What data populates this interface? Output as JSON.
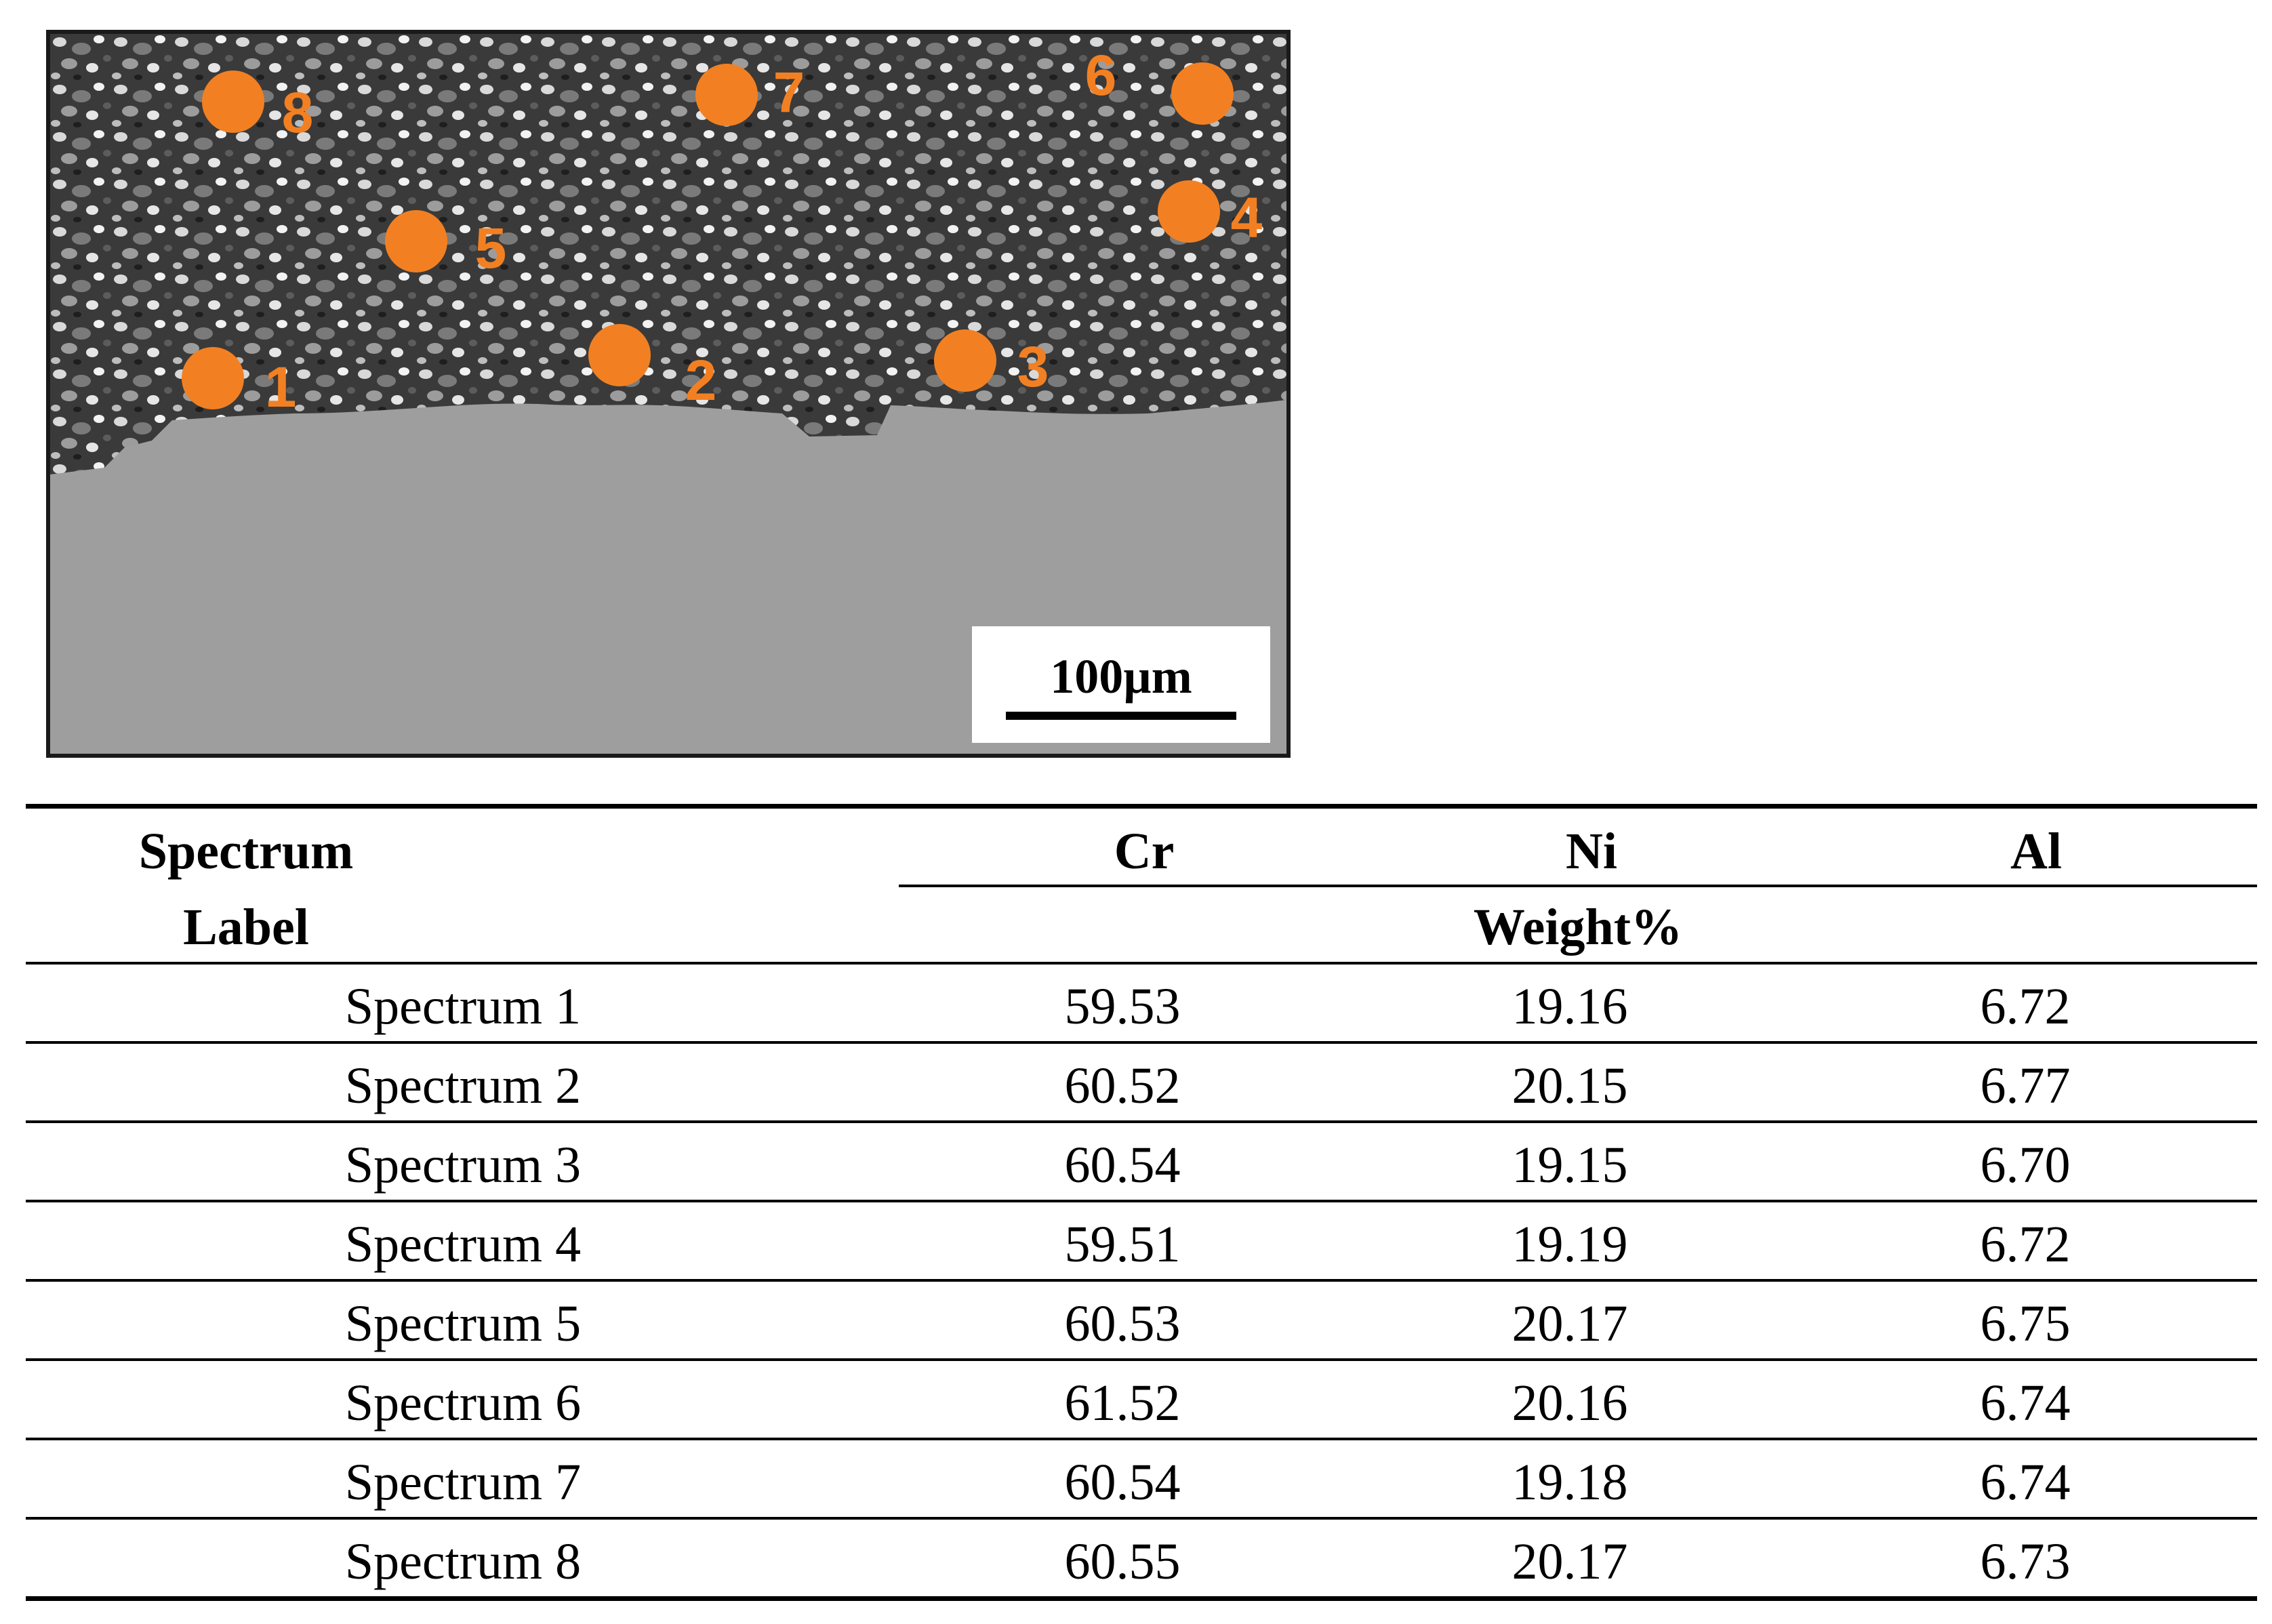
{
  "figure": {
    "scale_bar": {
      "label": "100µm"
    },
    "markers": [
      {
        "label": "1",
        "color": "#F28022"
      },
      {
        "label": "2",
        "color": "#F28022"
      },
      {
        "label": "3",
        "color": "#F28022"
      },
      {
        "label": "4",
        "color": "#F28022"
      },
      {
        "label": "5",
        "color": "#F28022"
      },
      {
        "label": "6",
        "color": "#F28022"
      },
      {
        "label": "7",
        "color": "#F28022"
      },
      {
        "label": "8",
        "color": "#F28022"
      }
    ]
  },
  "table": {
    "header": {
      "spectrum_line1": "Spectrum",
      "spectrum_line2": "Label",
      "cr": "Cr",
      "ni": "Ni",
      "al": "Al",
      "unit": "Weight%"
    },
    "rows": [
      {
        "label": "Spectrum 1",
        "cr": "59.53",
        "ni": "19.16",
        "al": "6.72"
      },
      {
        "label": "Spectrum 2",
        "cr": "60.52",
        "ni": "20.15",
        "al": "6.77"
      },
      {
        "label": "Spectrum 3",
        "cr": "60.54",
        "ni": "19.15",
        "al": "6.70"
      },
      {
        "label": "Spectrum 4",
        "cr": "59.51",
        "ni": "19.19",
        "al": "6.72"
      },
      {
        "label": "Spectrum 5",
        "cr": "60.53",
        "ni": "20.17",
        "al": "6.75"
      },
      {
        "label": "Spectrum 6",
        "cr": "61.52",
        "ni": "20.16",
        "al": "6.74"
      },
      {
        "label": "Spectrum 7",
        "cr": "60.54",
        "ni": "19.18",
        "al": "6.74"
      },
      {
        "label": "Spectrum 8",
        "cr": "60.55",
        "ni": "20.17",
        "al": "6.73"
      }
    ]
  }
}
